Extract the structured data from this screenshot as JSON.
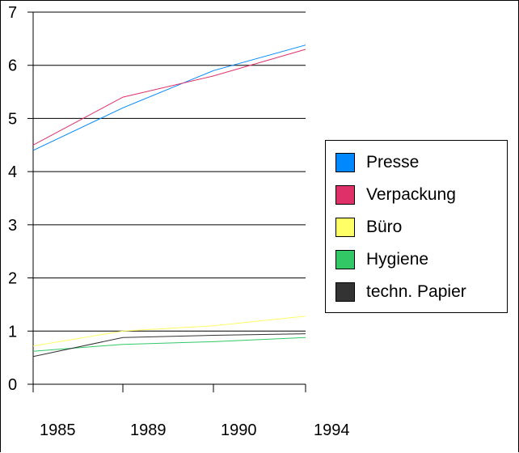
{
  "chart_data": {
    "type": "line",
    "categories": [
      "1985",
      "1989",
      "1990",
      "1994"
    ],
    "ylim": [
      0,
      7
    ],
    "yticks": [
      0,
      1,
      2,
      3,
      4,
      5,
      6,
      7
    ],
    "grid": true,
    "legend_position": "right",
    "series": [
      {
        "name": "Presse",
        "color": "#0088FF",
        "values": [
          4.4,
          5.2,
          5.9,
          6.38
        ]
      },
      {
        "name": "Verpackung",
        "color": "#E0306A",
        "values": [
          4.5,
          5.4,
          5.8,
          6.3
        ]
      },
      {
        "name": "Büro",
        "color": "#FFFF66",
        "values": [
          0.72,
          1.0,
          1.1,
          1.28
        ]
      },
      {
        "name": "Hygiene",
        "color": "#33C866",
        "values": [
          0.62,
          0.75,
          0.8,
          0.88
        ]
      },
      {
        "name": "techn. Papier",
        "color": "#333333",
        "values": [
          0.52,
          0.88,
          0.92,
          0.95
        ]
      }
    ]
  }
}
